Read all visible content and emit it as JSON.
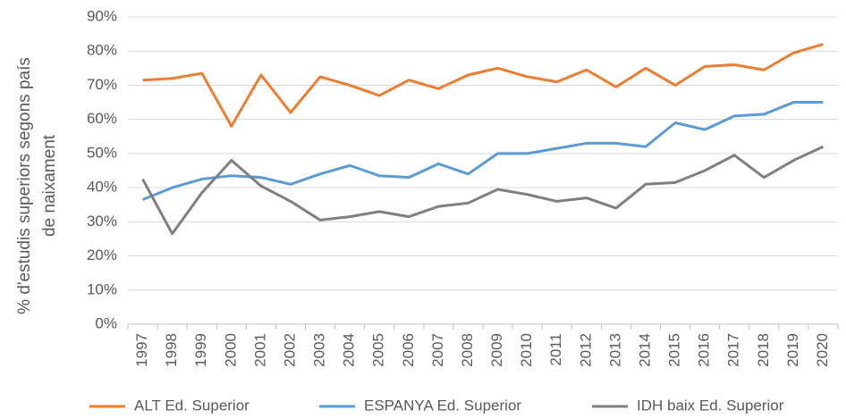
{
  "chart_data": {
    "type": "line",
    "y_label": [
      "% d'estudis superiors segons país",
      "de naixament"
    ],
    "categories": [
      "1997",
      "1998",
      "1999",
      "2000",
      "2001",
      "2002",
      "2003",
      "2004",
      "2005",
      "2006",
      "2007",
      "2008",
      "2009",
      "2010",
      "2011",
      "2012",
      "2013",
      "2014",
      "2015",
      "2016",
      "2017",
      "2018",
      "2019",
      "2020"
    ],
    "series": [
      {
        "name": "ALT Ed. Superior",
        "color": "#ed7d31",
        "values": [
          71.5,
          72,
          73.5,
          58,
          73,
          62,
          72.5,
          70,
          67,
          71.5,
          69,
          73,
          75,
          72.5,
          71,
          74.5,
          69.5,
          75,
          70,
          75.5,
          76,
          74.5,
          79.5,
          82
        ]
      },
      {
        "name": "ESPANYA Ed. Superior",
        "color": "#5b9bd5",
        "values": [
          36.5,
          40,
          42.5,
          43.5,
          43,
          41,
          44,
          46.5,
          43.5,
          43,
          47,
          44,
          50,
          50,
          51.5,
          53,
          53,
          52,
          59,
          57,
          61,
          61.5,
          65,
          65
        ]
      },
      {
        "name": "IDH baix Ed. Superior",
        "color": "#7f7f7f",
        "values": [
          42.5,
          26.5,
          38.5,
          48,
          40.5,
          36,
          30.5,
          31.5,
          33,
          31.5,
          34.5,
          35.5,
          39.5,
          38,
          36,
          37,
          34,
          41,
          41.5,
          45,
          49.5,
          43,
          48,
          52
        ]
      }
    ],
    "ylim": [
      0,
      90
    ],
    "yticks": [
      {
        "value": 0,
        "label": "0%"
      },
      {
        "value": 10,
        "label": "10%"
      },
      {
        "value": 20,
        "label": "20%"
      },
      {
        "value": 30,
        "label": "30%"
      },
      {
        "value": 40,
        "label": "40%"
      },
      {
        "value": 50,
        "label": "50%"
      },
      {
        "value": 60,
        "label": "60%"
      },
      {
        "value": 70,
        "label": "70%"
      },
      {
        "value": 80,
        "label": "80%"
      },
      {
        "value": 90,
        "label": "90%"
      }
    ],
    "grid": true
  }
}
